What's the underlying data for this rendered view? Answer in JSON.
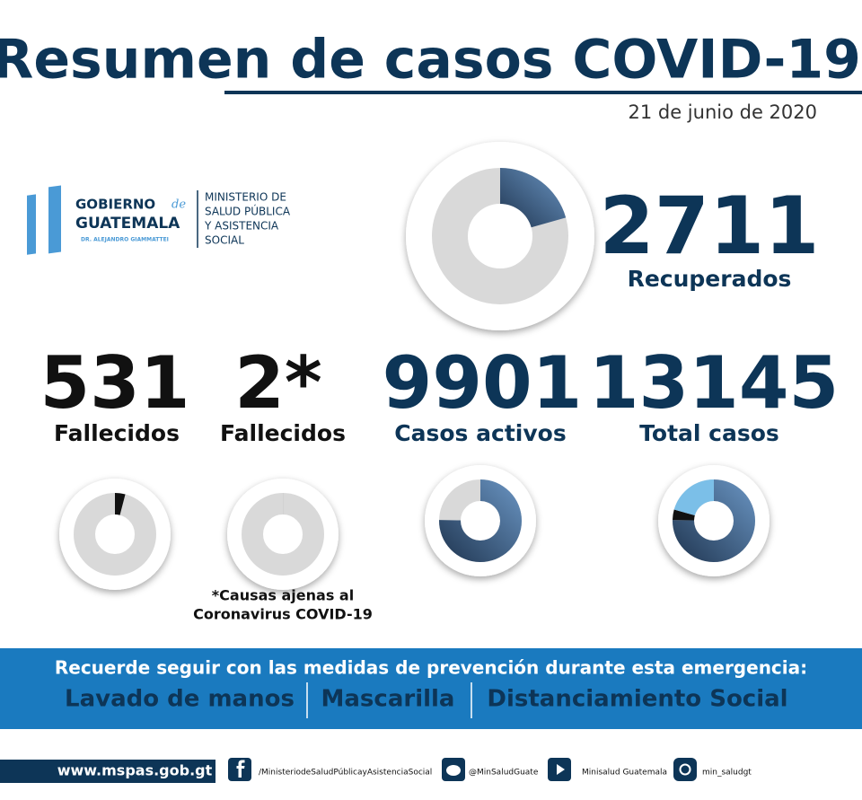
{
  "header": {
    "title": "Resumen de casos COVID-19",
    "date": "21 de junio de 2020"
  },
  "logo": {
    "gobierno": "GOBIERNO",
    "de": "de",
    "guatemala": "GUATEMALA",
    "president": "DR. ALEJANDRO GIAMMATTEI",
    "ministry": [
      "MINISTERIO DE",
      "SALUD PÚBLICA",
      "Y ASISTENCIA",
      "SOCIAL"
    ]
  },
  "stats": [
    {
      "value": 2711,
      "label": "Recuperados"
    },
    {
      "value": 531,
      "label": "Fallecidos"
    },
    {
      "value": 2,
      "value_label": "2*",
      "label": "Fallecidos"
    },
    {
      "value": 9901,
      "label": "Casos activos"
    },
    {
      "value": 13145,
      "label": "Total casos"
    }
  ],
  "footnote": [
    "*Causas ajenas al",
    "Coronavirus COVID-19"
  ],
  "banner": {
    "message": "Recuerde seguir con las medidas de prevención durante esta emergencia:",
    "items": [
      "Lavado de manos",
      "Mascarilla",
      "Distanciamiento Social"
    ]
  },
  "footer": {
    "website": "www.mspas.gob.gt",
    "social": [
      "/MinisteriodeSaludPúblicayAsistenciaSocial",
      "@MinSaludGuate",
      "Minisalud Guatemala",
      "min_saludgt"
    ]
  }
}
